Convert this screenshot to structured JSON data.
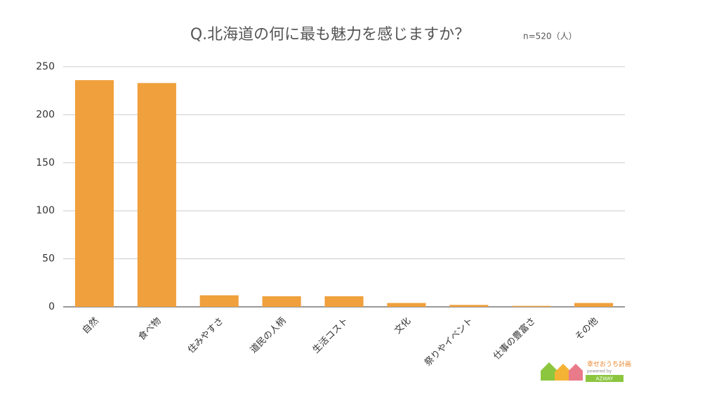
{
  "chart_data": {
    "type": "bar",
    "title": "Q.北海道の何に最も魅力を感じますか？",
    "subtitle": "n=520（人）",
    "categories": [
      "自然",
      "食べ物",
      "住みやすさ",
      "道民の人柄",
      "生活コスト",
      "文化",
      "祭りやイベント",
      "仕事の豊富さ",
      "その他"
    ],
    "values": [
      236,
      233,
      12,
      11,
      11,
      4,
      2,
      1,
      4
    ],
    "color": "#f0a03c",
    "ylim": [
      0,
      250
    ],
    "yticks": [
      0,
      50,
      100,
      150,
      200,
      250
    ],
    "grid": true
  },
  "logo": {
    "name": "幸せおうち計画",
    "tagline": "powered by",
    "brand": "AZWAY"
  }
}
